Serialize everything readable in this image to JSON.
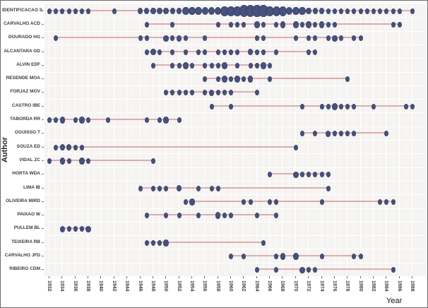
{
  "colors": {
    "panel_bg": "#f5f4f2",
    "grid_major": "#ffffff",
    "grid_minor": "rgba(255,255,255,0.55)",
    "dot": "#47527f",
    "dot_edge": "#39436a",
    "segment": "#dbadaf",
    "axis_text": "#444444",
    "border": "#6a6a6a"
  },
  "chart_data": {
    "type": "scatter",
    "title": "",
    "xlabel": "Year",
    "ylabel": "Author",
    "xlim": [
      1931,
      1989
    ],
    "x_ticks": [
      1932,
      1934,
      1936,
      1938,
      1940,
      1942,
      1944,
      1946,
      1948,
      1950,
      1952,
      1954,
      1956,
      1958,
      1960,
      1962,
      1964,
      1966,
      1968,
      1970,
      1972,
      1974,
      1976,
      1978,
      1980,
      1982,
      1984,
      1986,
      1988
    ],
    "grid": true,
    "legend": "none",
    "size_map": {
      "1": [
        4,
        6
      ],
      "2": [
        5.5,
        7.5
      ],
      "3": [
        7.5,
        9.5
      ],
      "4": [
        9.5,
        12
      ],
      "5": [
        11.5,
        14.5
      ]
    },
    "authors": [
      {
        "name": "IDENTIFICACAO S",
        "start": 1932,
        "end": 1988,
        "dots": [
          [
            1932,
            1
          ],
          [
            1933,
            1
          ],
          [
            1934,
            1
          ],
          [
            1935,
            1
          ],
          [
            1936,
            1
          ],
          [
            1937,
            1
          ],
          [
            1938,
            1
          ],
          [
            1942,
            1
          ],
          [
            1946,
            2
          ],
          [
            1947,
            2
          ],
          [
            1948,
            2
          ],
          [
            1949,
            2
          ],
          [
            1950,
            2
          ],
          [
            1951,
            2
          ],
          [
            1952,
            2
          ],
          [
            1953,
            3
          ],
          [
            1954,
            3
          ],
          [
            1955,
            3
          ],
          [
            1956,
            3
          ],
          [
            1957,
            3
          ],
          [
            1958,
            3
          ],
          [
            1959,
            4
          ],
          [
            1960,
            4
          ],
          [
            1961,
            4
          ],
          [
            1962,
            5
          ],
          [
            1963,
            5
          ],
          [
            1964,
            5
          ],
          [
            1965,
            5
          ],
          [
            1966,
            4
          ],
          [
            1967,
            4
          ],
          [
            1968,
            4
          ],
          [
            1969,
            3
          ],
          [
            1970,
            3
          ],
          [
            1971,
            3
          ],
          [
            1972,
            2
          ],
          [
            1973,
            2
          ],
          [
            1974,
            2
          ],
          [
            1975,
            1
          ],
          [
            1976,
            1
          ],
          [
            1977,
            1
          ],
          [
            1978,
            1
          ],
          [
            1979,
            1
          ],
          [
            1980,
            1
          ],
          [
            1981,
            1
          ],
          [
            1982,
            1
          ],
          [
            1983,
            1
          ],
          [
            1984,
            1
          ],
          [
            1985,
            1
          ],
          [
            1986,
            1
          ],
          [
            1988,
            1
          ]
        ]
      },
      {
        "name": "CARVALHO ACD",
        "start": 1947,
        "end": 1986,
        "dots": [
          [
            1947,
            1
          ],
          [
            1951,
            1
          ],
          [
            1958,
            1
          ],
          [
            1960,
            1
          ],
          [
            1961,
            1
          ],
          [
            1962,
            1
          ],
          [
            1964,
            2
          ],
          [
            1965,
            1
          ],
          [
            1967,
            1
          ],
          [
            1968,
            2
          ],
          [
            1970,
            2
          ],
          [
            1971,
            1
          ],
          [
            1972,
            2
          ],
          [
            1973,
            1
          ],
          [
            1974,
            2
          ],
          [
            1975,
            1
          ],
          [
            1976,
            1
          ],
          [
            1985,
            1
          ],
          [
            1986,
            1
          ]
        ]
      },
      {
        "name": "DOURADO HG",
        "start": 1933,
        "end": 1980,
        "dots": [
          [
            1933,
            1
          ],
          [
            1946,
            1
          ],
          [
            1947,
            1
          ],
          [
            1950,
            2
          ],
          [
            1951,
            1
          ],
          [
            1952,
            2
          ],
          [
            1953,
            1
          ],
          [
            1956,
            1
          ],
          [
            1964,
            1
          ],
          [
            1965,
            1
          ],
          [
            1970,
            1
          ],
          [
            1972,
            1
          ],
          [
            1973,
            1
          ],
          [
            1975,
            1
          ],
          [
            1976,
            2
          ],
          [
            1977,
            1
          ],
          [
            1979,
            1
          ],
          [
            1980,
            1
          ]
        ]
      },
      {
        "name": "ALCANTARA GD",
        "start": 1947,
        "end": 1973,
        "dots": [
          [
            1947,
            1
          ],
          [
            1948,
            2
          ],
          [
            1949,
            1
          ],
          [
            1951,
            1
          ],
          [
            1953,
            1
          ],
          [
            1955,
            1
          ],
          [
            1956,
            1
          ],
          [
            1958,
            1
          ],
          [
            1959,
            1
          ],
          [
            1960,
            1
          ],
          [
            1961,
            1
          ],
          [
            1963,
            2
          ],
          [
            1964,
            1
          ],
          [
            1965,
            1
          ],
          [
            1967,
            1
          ],
          [
            1972,
            1
          ],
          [
            1973,
            1
          ]
        ]
      },
      {
        "name": "ALVIN EDF",
        "start": 1948,
        "end": 1966,
        "dots": [
          [
            1948,
            1
          ],
          [
            1951,
            1
          ],
          [
            1952,
            1
          ],
          [
            1953,
            2
          ],
          [
            1954,
            1
          ],
          [
            1956,
            1
          ],
          [
            1957,
            1
          ],
          [
            1958,
            1
          ],
          [
            1959,
            2
          ],
          [
            1961,
            1
          ],
          [
            1963,
            1
          ],
          [
            1964,
            1
          ],
          [
            1965,
            2
          ],
          [
            1966,
            1
          ]
        ]
      },
      {
        "name": "RESENDE MOA",
        "start": 1956,
        "end": 1978,
        "dots": [
          [
            1956,
            1
          ],
          [
            1958,
            1
          ],
          [
            1959,
            2
          ],
          [
            1960,
            1
          ],
          [
            1961,
            2
          ],
          [
            1962,
            1
          ],
          [
            1963,
            2
          ],
          [
            1966,
            1
          ],
          [
            1978,
            1
          ]
        ]
      },
      {
        "name": "FORJAZ MOV",
        "start": 1950,
        "end": 1964,
        "dots": [
          [
            1950,
            1
          ],
          [
            1951,
            1
          ],
          [
            1952,
            1
          ],
          [
            1953,
            1
          ],
          [
            1954,
            1
          ],
          [
            1956,
            1
          ],
          [
            1957,
            2
          ],
          [
            1958,
            1
          ],
          [
            1959,
            1
          ],
          [
            1960,
            1
          ],
          [
            1964,
            1
          ]
        ]
      },
      {
        "name": "CASTRO IBE",
        "start": 1957,
        "end": 1988,
        "dots": [
          [
            1957,
            1
          ],
          [
            1960,
            1
          ],
          [
            1971,
            1
          ],
          [
            1974,
            1
          ],
          [
            1975,
            1
          ],
          [
            1976,
            2
          ],
          [
            1977,
            1
          ],
          [
            1978,
            1
          ],
          [
            1979,
            1
          ],
          [
            1982,
            1
          ],
          [
            1987,
            1
          ],
          [
            1988,
            1
          ]
        ]
      },
      {
        "name": "TABORDA RR",
        "start": 1932,
        "end": 1952,
        "dots": [
          [
            1932,
            1
          ],
          [
            1933,
            1
          ],
          [
            1934,
            2
          ],
          [
            1936,
            1
          ],
          [
            1937,
            2
          ],
          [
            1938,
            1
          ],
          [
            1941,
            1
          ],
          [
            1947,
            1
          ],
          [
            1949,
            1
          ],
          [
            1950,
            2
          ],
          [
            1952,
            1
          ]
        ]
      },
      {
        "name": "OGUISSO T",
        "start": 1971,
        "end": 1984,
        "dots": [
          [
            1971,
            1
          ],
          [
            1973,
            1
          ],
          [
            1975,
            2
          ],
          [
            1976,
            1
          ],
          [
            1977,
            1
          ],
          [
            1978,
            1
          ],
          [
            1979,
            1
          ],
          [
            1984,
            1
          ]
        ]
      },
      {
        "name": "SOUZA ED",
        "start": 1933,
        "end": 1970,
        "dots": [
          [
            1933,
            1
          ],
          [
            1934,
            2
          ],
          [
            1935,
            2
          ],
          [
            1936,
            1
          ],
          [
            1937,
            1
          ],
          [
            1970,
            1
          ]
        ]
      },
      {
        "name": "VIDAL ZC",
        "start": 1932,
        "end": 1948,
        "dots": [
          [
            1932,
            1
          ],
          [
            1934,
            2
          ],
          [
            1935,
            1
          ],
          [
            1937,
            2
          ],
          [
            1938,
            1
          ],
          [
            1948,
            1
          ]
        ]
      },
      {
        "name": "HORTA WDA",
        "start": 1966,
        "end": 1975,
        "dots": [
          [
            1966,
            1
          ],
          [
            1970,
            2
          ],
          [
            1971,
            1
          ],
          [
            1972,
            1
          ],
          [
            1973,
            1
          ],
          [
            1974,
            1
          ],
          [
            1975,
            1
          ]
        ]
      },
      {
        "name": "LIMA IB",
        "start": 1946,
        "end": 1975,
        "dots": [
          [
            1946,
            1
          ],
          [
            1948,
            1
          ],
          [
            1949,
            1
          ],
          [
            1950,
            1
          ],
          [
            1952,
            2
          ],
          [
            1955,
            1
          ],
          [
            1957,
            1
          ],
          [
            1958,
            1
          ],
          [
            1975,
            1
          ]
        ]
      },
      {
        "name": "OLIVEIRA MIRD",
        "start": 1953,
        "end": 1985,
        "dots": [
          [
            1953,
            1
          ],
          [
            1954,
            2
          ],
          [
            1962,
            1
          ],
          [
            1963,
            1
          ],
          [
            1966,
            1
          ],
          [
            1967,
            1
          ],
          [
            1974,
            1
          ],
          [
            1983,
            1
          ],
          [
            1984,
            1
          ],
          [
            1985,
            1
          ]
        ]
      },
      {
        "name": "PAIXAO W",
        "start": 1947,
        "end": 1967,
        "dots": [
          [
            1947,
            1
          ],
          [
            1950,
            1
          ],
          [
            1952,
            1
          ],
          [
            1955,
            1
          ],
          [
            1958,
            2
          ],
          [
            1959,
            1
          ],
          [
            1960,
            1
          ],
          [
            1964,
            1
          ],
          [
            1967,
            1
          ]
        ]
      },
      {
        "name": "PULLEM BL",
        "start": 1934,
        "end": 1938,
        "dots": [
          [
            1934,
            2
          ],
          [
            1935,
            1
          ],
          [
            1936,
            1
          ],
          [
            1937,
            1
          ],
          [
            1938,
            2
          ]
        ]
      },
      {
        "name": "TEIXEIRA RB",
        "start": 1947,
        "end": 1965,
        "dots": [
          [
            1947,
            1
          ],
          [
            1948,
            1
          ],
          [
            1949,
            1
          ],
          [
            1950,
            2
          ],
          [
            1965,
            1
          ]
        ]
      },
      {
        "name": "CARVALHO JFD",
        "start": 1960,
        "end": 1980,
        "dots": [
          [
            1960,
            1
          ],
          [
            1962,
            1
          ],
          [
            1967,
            1
          ],
          [
            1968,
            2
          ],
          [
            1970,
            2
          ],
          [
            1974,
            1
          ],
          [
            1979,
            1
          ],
          [
            1980,
            1
          ]
        ]
      },
      {
        "name": "RIBEIRO CDM",
        "start": 1964,
        "end": 1985,
        "dots": [
          [
            1964,
            1
          ],
          [
            1967,
            1
          ],
          [
            1971,
            2
          ],
          [
            1972,
            1
          ],
          [
            1973,
            1
          ],
          [
            1985,
            1
          ]
        ]
      }
    ]
  },
  "layout_hints": {
    "x_tick_step": 2,
    "minor_grid_every_year": true,
    "dot_shape": "vertical-ellipse"
  }
}
